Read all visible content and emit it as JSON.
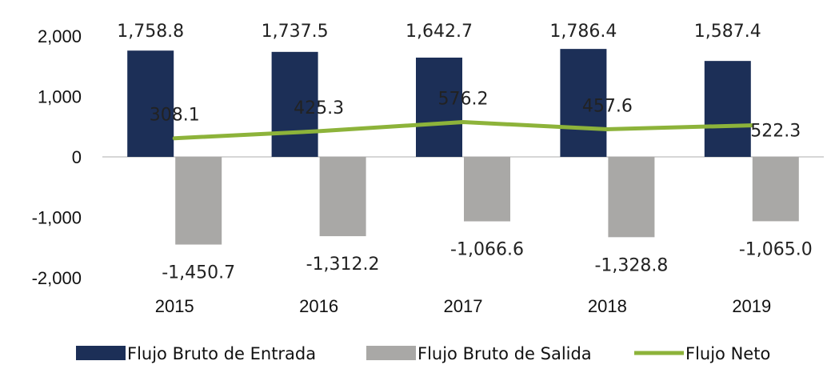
{
  "chart_data": {
    "type": "bar",
    "categories": [
      "2015",
      "2016",
      "2017",
      "2018",
      "2019"
    ],
    "ylim": [
      -2000,
      2000
    ],
    "yticks": [
      2000,
      1000,
      0,
      -1000,
      -2000
    ],
    "ytick_labels": [
      "2,000",
      "1,000",
      "0",
      "-1,000",
      "-2,000"
    ],
    "grid": false,
    "legend_position": "bottom",
    "series": [
      {
        "name": "Flujo Bruto de Entrada",
        "type": "bar",
        "color": "#1c2f57",
        "values": [
          1758.8,
          1737.5,
          1642.7,
          1786.4,
          1587.4
        ],
        "labels": [
          "1,758.8",
          "1,737.5",
          "1,642.7",
          "1,786.4",
          "1,587.4"
        ]
      },
      {
        "name": "Flujo Bruto de Salida",
        "type": "bar",
        "color": "#a9a8a6",
        "values": [
          -1450.7,
          -1312.2,
          -1066.6,
          -1328.8,
          -1065.0
        ],
        "labels": [
          "-1,450.7",
          "-1,312.2",
          "-1,066.6",
          "-1,328.8",
          "-1,065.0"
        ]
      },
      {
        "name": "Flujo Neto",
        "type": "line",
        "color": "#8db33a",
        "values": [
          308.1,
          425.3,
          576.2,
          457.6,
          522.3
        ],
        "labels": [
          "308.1",
          "425.3",
          "576.2",
          "457.6",
          "522.3"
        ]
      }
    ]
  }
}
